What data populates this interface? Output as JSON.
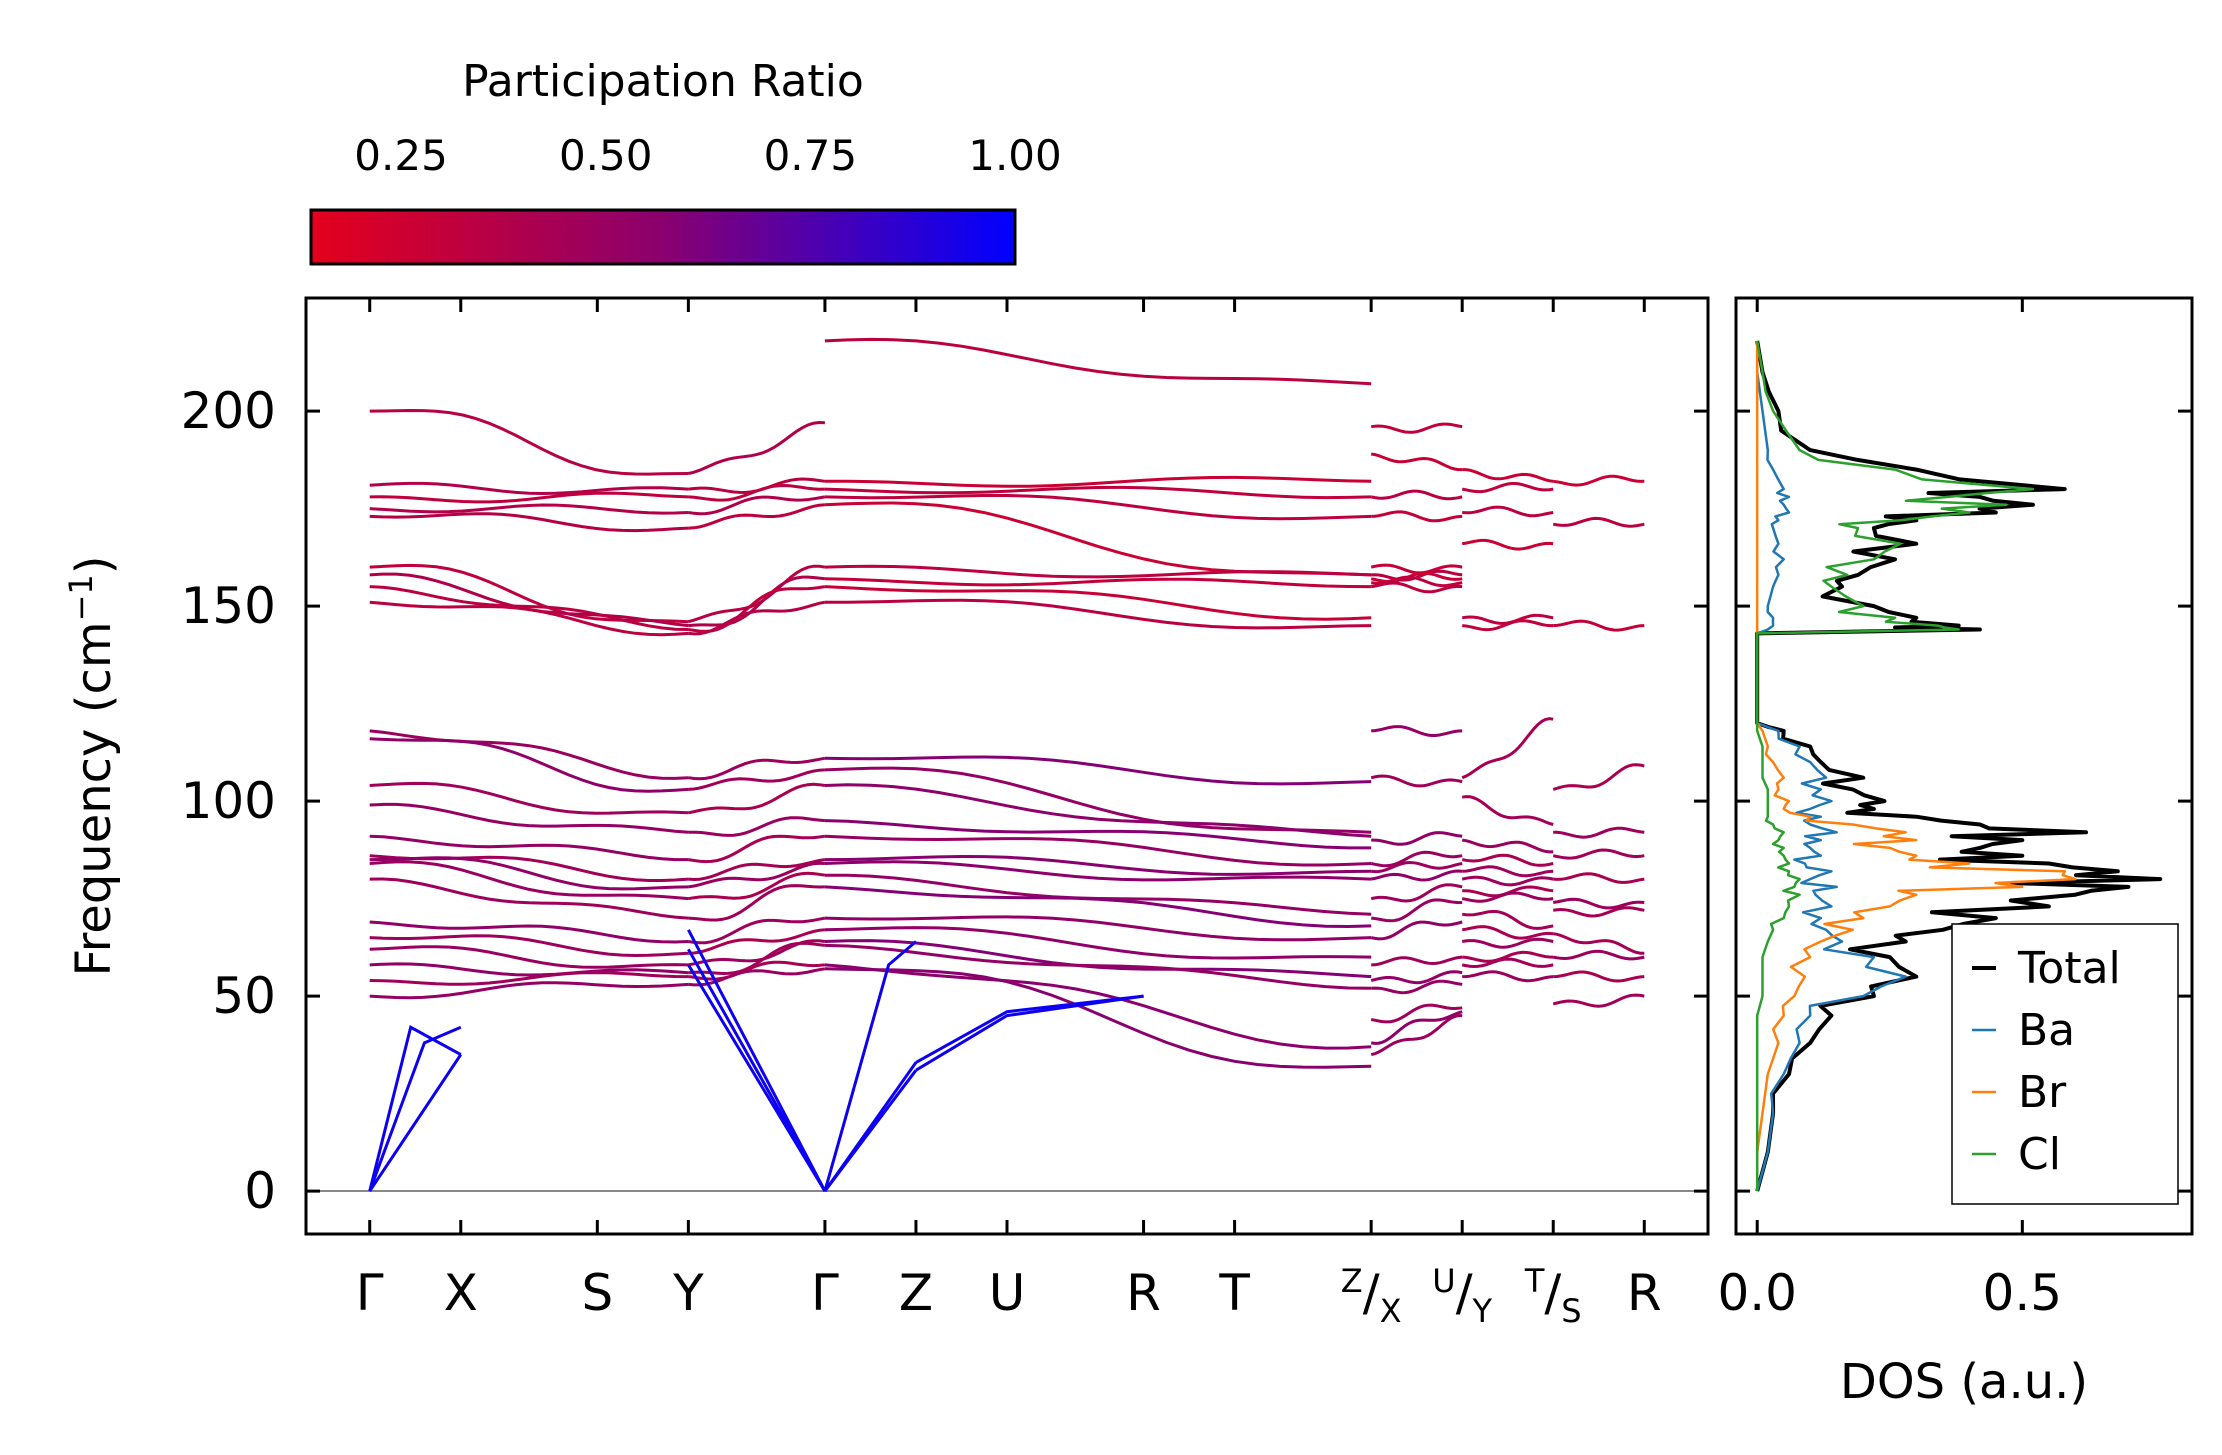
{
  "chart_data": [
    {
      "type": "line",
      "subtype": "phonon-band-structure",
      "ylabel": "Frequency (cm",
      "ylabel_sup": "−1",
      "ylabel_tail": ")",
      "ylim": [
        -11,
        229
      ],
      "yticks": [
        0,
        50,
        100,
        150,
        200
      ],
      "xticks": [
        "Γ",
        "X",
        "S",
        "Y",
        "Γ",
        "Z",
        "U",
        "R",
        "T",
        "Z/X",
        "U/Y",
        "T/S",
        "R"
      ],
      "xtick_positions": [
        0,
        1,
        2.5,
        3.5,
        5,
        6,
        7,
        8.5,
        9.5,
        11,
        12,
        13,
        14
      ],
      "x_breaks": [
        3.5,
        11,
        12,
        13
      ],
      "xlim": [
        -0.7,
        14.7
      ],
      "color_scale": {
        "label": "Participation Ratio",
        "ticks": [
          "0.25",
          "0.50",
          "0.75",
          "1.00"
        ],
        "tick_values": [
          0.25,
          0.5,
          0.75,
          1.0
        ],
        "range": [
          0.14,
          1.0
        ],
        "low_color": "#e4001c",
        "mid_color": "#8a006e",
        "high_color": "#0000ff"
      },
      "segments": [
        {
          "x0": 0,
          "x1": 3.5,
          "start": [
            200,
            181,
            178,
            175,
            173,
            160,
            158,
            155,
            151
          ],
          "end": [
            184,
            180,
            178,
            174,
            170,
            146,
            145,
            144,
            143
          ],
          "pr": 0.35
        },
        {
          "x0": 3.5,
          "x1": 5,
          "start": [
            184,
            180,
            178,
            174,
            170,
            146,
            145,
            144,
            143
          ],
          "end": [
            197,
            182,
            180,
            178,
            176,
            160,
            157,
            155,
            151
          ],
          "pr": 0.35
        },
        {
          "x0": 5,
          "x1": 11,
          "start": [
            218,
            182,
            180,
            178,
            176,
            160,
            157,
            155,
            151
          ],
          "end": [
            207,
            182,
            178,
            173,
            158,
            158,
            155,
            147,
            145
          ],
          "pr": 0.3
        },
        {
          "x0": 11,
          "x1": 12,
          "start": [
            196,
            189,
            178,
            173,
            160,
            158,
            157,
            156,
            155
          ],
          "end": [
            196,
            185,
            178,
            173,
            160,
            158,
            157,
            156,
            155
          ],
          "pr": 0.3
        },
        {
          "x0": 12,
          "x1": 13,
          "start": [
            185,
            180,
            174,
            166,
            147,
            145
          ],
          "end": [
            182,
            180,
            174,
            166,
            147,
            145
          ],
          "pr": 0.3
        },
        {
          "x0": 13,
          "x1": 14,
          "start": [
            182,
            171,
            145
          ],
          "end": [
            182,
            171,
            145
          ],
          "pr": 0.3
        },
        {
          "x0": 0,
          "x1": 3.5,
          "start": [
            118,
            116,
            104,
            99,
            91,
            86,
            85,
            84,
            80,
            69,
            65,
            62,
            58,
            54,
            50
          ],
          "end": [
            106,
            103,
            97,
            92,
            85,
            80,
            78,
            75,
            70,
            64,
            61,
            58,
            56,
            55,
            53
          ],
          "pr": 0.5
        },
        {
          "x0": 3.5,
          "x1": 5,
          "start": [
            106,
            103,
            97,
            92,
            85,
            80,
            78,
            75,
            70,
            64,
            61,
            58,
            56,
            55,
            53
          ],
          "end": [
            111,
            108,
            104,
            95,
            91,
            85,
            84,
            81,
            78,
            70,
            67,
            64,
            63,
            58,
            57
          ],
          "pr": 0.45
        },
        {
          "x0": 5,
          "x1": 11,
          "start": [
            111,
            108,
            104,
            95,
            91,
            85,
            84,
            81,
            78,
            70,
            67,
            64,
            63,
            58,
            57
          ],
          "end": [
            105,
            92,
            91,
            88,
            84,
            82,
            80,
            71,
            68,
            65,
            60,
            55,
            52,
            37,
            32
          ],
          "pr": 0.55
        },
        {
          "x0": 11,
          "x1": 12,
          "start": [
            118,
            106,
            90,
            84,
            82,
            80,
            75,
            70,
            65,
            58,
            54,
            52,
            44,
            38,
            35
          ],
          "end": [
            118,
            105,
            91,
            86,
            84,
            82,
            78,
            74,
            69,
            60,
            56,
            53,
            47,
            46,
            45
          ],
          "pr": 0.5
        },
        {
          "x0": 12,
          "x1": 13,
          "start": [
            106,
            101,
            90,
            85,
            82,
            80,
            77,
            75,
            71,
            67,
            64,
            60,
            58,
            55
          ],
          "end": [
            121,
            94,
            87,
            84,
            82,
            80,
            77,
            75,
            68,
            66,
            64,
            60,
            58,
            55
          ],
          "pr": 0.45
        },
        {
          "x0": 13,
          "x1": 14,
          "start": [
            103,
            92,
            86,
            80,
            74,
            72,
            66,
            60,
            55,
            48
          ],
          "end": [
            109,
            92,
            86,
            80,
            74,
            72,
            61,
            60,
            55,
            50
          ],
          "pr": 0.45
        }
      ],
      "acoustic_branches": [
        {
          "x": [
            0,
            0.45,
            1
          ],
          "y": [
            0,
            42,
            35
          ]
        },
        {
          "x": [
            0,
            1
          ],
          "y": [
            0,
            35
          ]
        },
        {
          "x": [
            0,
            0.6,
            1
          ],
          "y": [
            0,
            38,
            42
          ]
        },
        {
          "x": [
            3.5,
            5
          ],
          "y": [
            58,
            0
          ]
        },
        {
          "x": [
            3.5,
            5
          ],
          "y": [
            62,
            0
          ]
        },
        {
          "x": [
            3.5,
            5
          ],
          "y": [
            67,
            0
          ]
        },
        {
          "x": [
            5,
            6
          ],
          "y": [
            0,
            31
          ]
        },
        {
          "x": [
            5,
            6
          ],
          "y": [
            0,
            33
          ]
        },
        {
          "x": [
            5,
            5.7,
            6
          ],
          "y": [
            0,
            58,
            64
          ]
        },
        {
          "x": [
            6,
            7,
            8.5
          ],
          "y": [
            31,
            45,
            50
          ]
        },
        {
          "x": [
            6,
            7,
            8.5
          ],
          "y": [
            33,
            46,
            50
          ]
        }
      ]
    },
    {
      "type": "line",
      "subtype": "density-of-states",
      "xlabel": "DOS (a.u.)",
      "xticks": [
        "0.0",
        "0.5"
      ],
      "xtick_values": [
        0.0,
        0.5
      ],
      "xlim": [
        -0.04,
        0.82
      ],
      "ylim": [
        -11,
        229
      ],
      "legend_position": "lower-right",
      "series": [
        {
          "name": "Total",
          "color": "#000000",
          "y": [
            0,
            10,
            20,
            30,
            38,
            45,
            50,
            55,
            60,
            64,
            67,
            70,
            73,
            76,
            78,
            80,
            82,
            84,
            86,
            88,
            90,
            92,
            94,
            96,
            98,
            100,
            103,
            106,
            110,
            114,
            118,
            120,
            125,
            135,
            143,
            144,
            145,
            147,
            150,
            155,
            158,
            162,
            166,
            170,
            172,
            174,
            176,
            178,
            180,
            185,
            190,
            200,
            210,
            218
          ],
          "values": [
            0.0,
            0.02,
            0.03,
            0.06,
            0.1,
            0.14,
            0.22,
            0.3,
            0.25,
            0.28,
            0.35,
            0.45,
            0.55,
            0.6,
            0.7,
            0.76,
            0.68,
            0.55,
            0.5,
            0.42,
            0.5,
            0.62,
            0.42,
            0.3,
            0.22,
            0.24,
            0.18,
            0.2,
            0.12,
            0.1,
            0.05,
            0.0,
            0.0,
            0.0,
            0.0,
            0.42,
            0.38,
            0.3,
            0.22,
            0.16,
            0.19,
            0.26,
            0.3,
            0.22,
            0.3,
            0.45,
            0.52,
            0.42,
            0.58,
            0.3,
            0.1,
            0.04,
            0.01,
            0.0
          ]
        },
        {
          "name": "Ba",
          "color": "#1f77b4",
          "y": [
            0,
            10,
            20,
            30,
            38,
            45,
            50,
            55,
            60,
            64,
            67,
            70,
            73,
            76,
            78,
            80,
            82,
            84,
            86,
            88,
            90,
            92,
            94,
            96,
            98,
            100,
            103,
            106,
            110,
            114,
            118,
            120,
            125,
            135,
            143,
            144,
            145,
            147,
            150,
            155,
            158,
            162,
            166,
            170,
            172,
            174,
            176,
            178,
            180,
            185,
            190,
            200,
            210,
            218
          ],
          "values": [
            0.0,
            0.02,
            0.03,
            0.05,
            0.08,
            0.1,
            0.2,
            0.28,
            0.22,
            0.16,
            0.13,
            0.12,
            0.14,
            0.11,
            0.15,
            0.1,
            0.14,
            0.09,
            0.12,
            0.1,
            0.12,
            0.15,
            0.1,
            0.12,
            0.1,
            0.14,
            0.12,
            0.13,
            0.1,
            0.08,
            0.04,
            0.0,
            0.0,
            0.0,
            0.0,
            0.02,
            0.03,
            0.03,
            0.02,
            0.03,
            0.04,
            0.05,
            0.04,
            0.03,
            0.04,
            0.06,
            0.05,
            0.06,
            0.05,
            0.03,
            0.02,
            0.01,
            0.0,
            0.0
          ]
        },
        {
          "name": "Br",
          "color": "#ff7f0e",
          "y": [
            0,
            10,
            20,
            30,
            38,
            45,
            50,
            55,
            60,
            64,
            67,
            70,
            73,
            76,
            78,
            80,
            82,
            84,
            86,
            88,
            90,
            92,
            94,
            96,
            98,
            100,
            103,
            106,
            110,
            114,
            118,
            120,
            125,
            135,
            143,
            144,
            145,
            147,
            150,
            155,
            158,
            162,
            166,
            170,
            172,
            174,
            176,
            178,
            180,
            185,
            190,
            200,
            210,
            218
          ],
          "values": [
            0.0,
            0.0,
            0.01,
            0.02,
            0.04,
            0.05,
            0.07,
            0.09,
            0.1,
            0.12,
            0.18,
            0.2,
            0.25,
            0.3,
            0.5,
            0.6,
            0.58,
            0.4,
            0.3,
            0.25,
            0.3,
            0.28,
            0.18,
            0.1,
            0.05,
            0.06,
            0.04,
            0.05,
            0.03,
            0.02,
            0.01,
            0.0,
            0.0,
            0.0,
            0.0,
            0.0,
            0.0,
            0.0,
            0.0,
            0.0,
            0.0,
            0.0,
            0.0,
            0.0,
            0.0,
            0.0,
            0.0,
            0.0,
            0.0,
            0.0,
            0.0,
            0.0,
            0.0,
            0.0
          ]
        },
        {
          "name": "Cl",
          "color": "#2ca02c",
          "y": [
            0,
            10,
            20,
            30,
            38,
            45,
            50,
            55,
            60,
            64,
            67,
            70,
            73,
            76,
            78,
            80,
            82,
            84,
            86,
            88,
            90,
            92,
            94,
            96,
            98,
            100,
            103,
            106,
            110,
            114,
            118,
            120,
            125,
            135,
            143,
            144,
            145,
            147,
            150,
            155,
            158,
            162,
            166,
            170,
            172,
            174,
            176,
            178,
            180,
            185,
            190,
            200,
            210,
            218
          ],
          "values": [
            0.0,
            0.0,
            0.0,
            0.0,
            0.0,
            0.0,
            0.01,
            0.01,
            0.01,
            0.02,
            0.03,
            0.05,
            0.06,
            0.08,
            0.07,
            0.08,
            0.06,
            0.06,
            0.05,
            0.05,
            0.04,
            0.05,
            0.03,
            0.02,
            0.02,
            0.02,
            0.02,
            0.01,
            0.01,
            0.01,
            0.0,
            0.0,
            0.0,
            0.0,
            0.0,
            0.38,
            0.34,
            0.26,
            0.2,
            0.14,
            0.17,
            0.22,
            0.27,
            0.19,
            0.27,
            0.4,
            0.47,
            0.36,
            0.52,
            0.26,
            0.08,
            0.03,
            0.01,
            0.0
          ]
        }
      ]
    }
  ]
}
